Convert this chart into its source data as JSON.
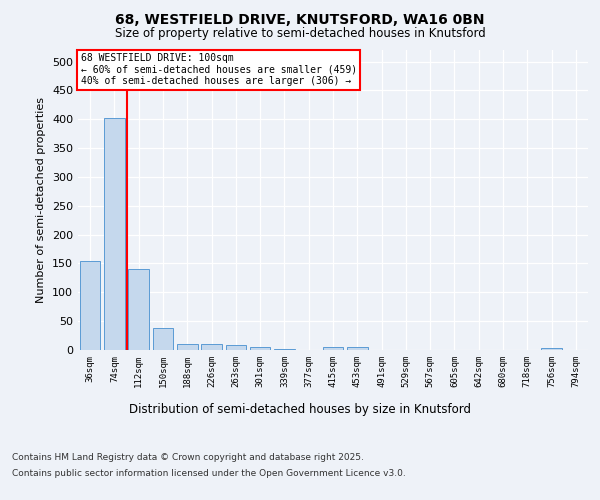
{
  "title_line1": "68, WESTFIELD DRIVE, KNUTSFORD, WA16 0BN",
  "title_line2": "Size of property relative to semi-detached houses in Knutsford",
  "xlabel": "Distribution of semi-detached houses by size in Knutsford",
  "ylabel": "Number of semi-detached properties",
  "categories": [
    "36sqm",
    "74sqm",
    "112sqm",
    "150sqm",
    "188sqm",
    "226sqm",
    "263sqm",
    "301sqm",
    "339sqm",
    "377sqm",
    "415sqm",
    "453sqm",
    "491sqm",
    "529sqm",
    "567sqm",
    "605sqm",
    "642sqm",
    "680sqm",
    "718sqm",
    "756sqm",
    "794sqm"
  ],
  "values": [
    155,
    403,
    140,
    38,
    11,
    10,
    8,
    6,
    2,
    0,
    6,
    6,
    0,
    0,
    0,
    0,
    0,
    0,
    0,
    3,
    0
  ],
  "bar_color": "#c5d8ed",
  "bar_edge_color": "#5b9bd5",
  "red_line_x": 1.5,
  "annotation_title": "68 WESTFIELD DRIVE: 100sqm",
  "annotation_line1": "← 60% of semi-detached houses are smaller (459)",
  "annotation_line2": "40% of semi-detached houses are larger (306) →",
  "ylim": [
    0,
    520
  ],
  "yticks": [
    0,
    50,
    100,
    150,
    200,
    250,
    300,
    350,
    400,
    450,
    500
  ],
  "footer_line1": "Contains HM Land Registry data © Crown copyright and database right 2025.",
  "footer_line2": "Contains public sector information licensed under the Open Government Licence v3.0.",
  "background_color": "#eef2f8"
}
